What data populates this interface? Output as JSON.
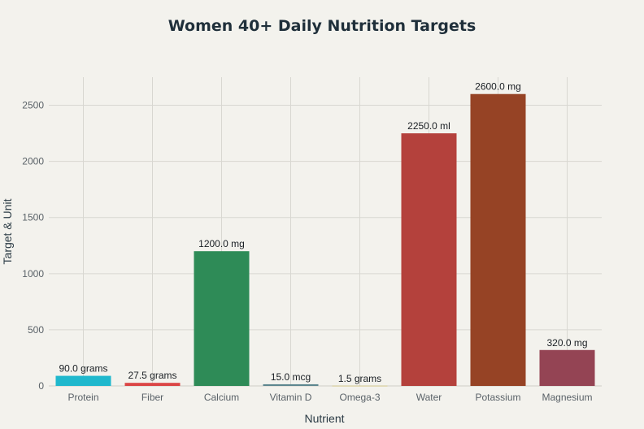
{
  "chart_data": {
    "type": "bar",
    "title": "Women 40+ Daily Nutrition Targets",
    "xlabel": "Nutrient",
    "ylabel": "Target & Unit",
    "categories": [
      "Protein",
      "Fiber",
      "Calcium",
      "Vitamin D",
      "Omega-3",
      "Water",
      "Potassium",
      "Magnesium"
    ],
    "values": [
      90.0,
      27.5,
      1200.0,
      15.0,
      1.5,
      2250.0,
      2600.0,
      320.0
    ],
    "units": [
      "grams",
      "grams",
      "mg",
      "mcg",
      "grams",
      "ml",
      "mg",
      "mg"
    ],
    "data_labels": [
      "90.0 grams",
      "27.5 grams",
      "1200.0 mg",
      "15.0 mcg",
      "1.5 grams",
      "2250.0 ml",
      "2600.0 mg",
      "320.0 mg"
    ],
    "colors": [
      "#1fb8cd",
      "#db4545",
      "#2e8b57",
      "#5d878f",
      "#d2ba4c",
      "#b4413c",
      "#964325",
      "#944454"
    ],
    "yticks": [
      0,
      500,
      1000,
      1500,
      2000,
      2500
    ],
    "ylim": [
      0,
      2750
    ],
    "grid": true
  }
}
